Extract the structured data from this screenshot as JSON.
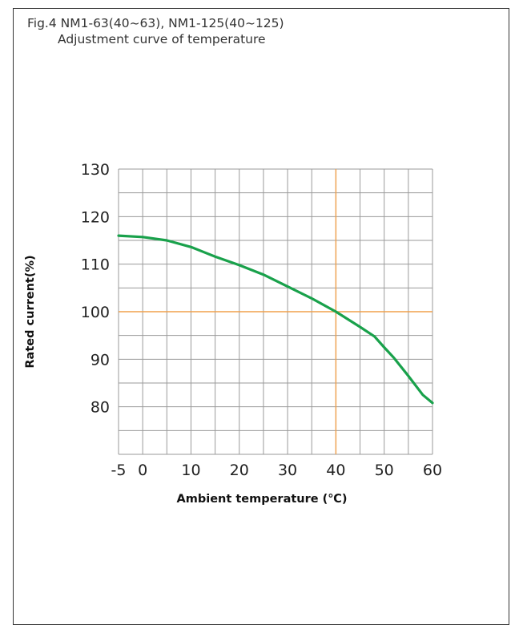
{
  "caption": {
    "line1": "Fig.4 NM1-63(40~63), NM1-125(40~125)",
    "line2": "Adjustment curve of temperature"
  },
  "colors": {
    "grid": "#9a9a9a",
    "curve": "#19a14b",
    "reference": "#f0a04b"
  },
  "chart_data": {
    "type": "line",
    "title": "",
    "xlabel": "Ambient temperature (℃)",
    "ylabel": "Rated current(%)",
    "xlim": [
      -5,
      60
    ],
    "ylim": [
      70,
      130
    ],
    "x_ticks": [
      "-5",
      "0",
      "10",
      "20",
      "30",
      "40",
      "50",
      "60"
    ],
    "y_ticks": [
      "80",
      "90",
      "100",
      "110",
      "120",
      "130"
    ],
    "grid": true,
    "reference_lines": {
      "x": 40,
      "y": 100
    },
    "series": [
      {
        "x": [
          -5,
          0,
          5,
          10,
          15,
          20,
          25,
          30,
          35,
          40,
          45,
          48,
          50,
          52,
          55,
          58,
          60
        ],
        "y": [
          116,
          115.7,
          115,
          113.6,
          111.6,
          109.8,
          107.8,
          105.3,
          102.8,
          100,
          96.8,
          94.8,
          92.5,
          90.3,
          86.5,
          82.5,
          80.8
        ]
      }
    ]
  }
}
